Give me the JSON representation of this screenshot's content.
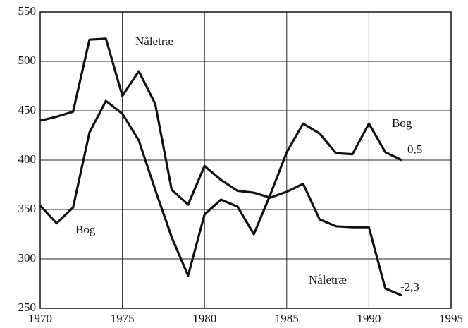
{
  "chart_data": {
    "type": "line",
    "x": [
      1970,
      1971,
      1972,
      1973,
      1974,
      1975,
      1976,
      1977,
      1978,
      1979,
      1980,
      1981,
      1982,
      1983,
      1984,
      1985,
      1986,
      1987,
      1988,
      1989,
      1990,
      1991,
      1992
    ],
    "series": [
      {
        "name": "Nåletræ",
        "color": "#111111",
        "values": [
          440,
          444,
          449,
          522,
          523,
          465,
          490,
          457,
          370,
          355,
          394,
          380,
          369,
          367,
          362,
          368,
          376,
          340,
          333,
          332,
          332,
          270,
          263
        ]
      },
      {
        "name": "Bog",
        "color": "#111111",
        "values": [
          354,
          336,
          352,
          428,
          460,
          447,
          420,
          370,
          322,
          283,
          345,
          360,
          353,
          325,
          365,
          408,
          437,
          427,
          407,
          406,
          437,
          408,
          400
        ]
      }
    ],
    "annotations": [
      "Bog",
      "0,5",
      "Nåletræ",
      "-2,3"
    ],
    "xlim": [
      1970,
      1995
    ],
    "xticks": [
      1970,
      1975,
      1980,
      1985,
      1990,
      1995
    ],
    "ylim": [
      250,
      550
    ],
    "yticks": [
      250,
      300,
      350,
      400,
      450,
      500,
      550
    ],
    "grid": true
  }
}
